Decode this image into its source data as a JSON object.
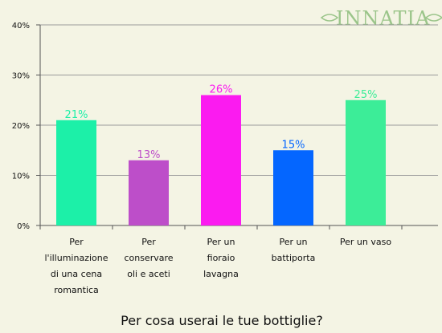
{
  "logo": {
    "text": "INNATIA",
    "color": "#9bc58a"
  },
  "chart_data": {
    "type": "bar",
    "title": "Per cosa userai le tue bottiglie?",
    "categories": [
      [
        "Per",
        "l'illuminazione",
        "di una cena",
        "romantica"
      ],
      [
        "Per",
        "conservare",
        "oli e aceti"
      ],
      [
        "Per un",
        "fioraio",
        "lavagna"
      ],
      [
        "Per un",
        "battiporta"
      ],
      [
        "Per un vaso"
      ]
    ],
    "values": [
      21,
      13,
      26,
      15,
      25
    ],
    "value_labels": [
      "21%",
      "13%",
      "26%",
      "15%",
      "25%"
    ],
    "colors": [
      "#1cf0a8",
      "#bd4ec9",
      "#fb1bf0",
      "#0466ff",
      "#3ced98"
    ],
    "ylim": [
      0,
      40
    ],
    "yticks": [
      "0%",
      "10%",
      "20%",
      "30%",
      "40%"
    ],
    "xlabel": "",
    "ylabel": "",
    "grid": true
  }
}
